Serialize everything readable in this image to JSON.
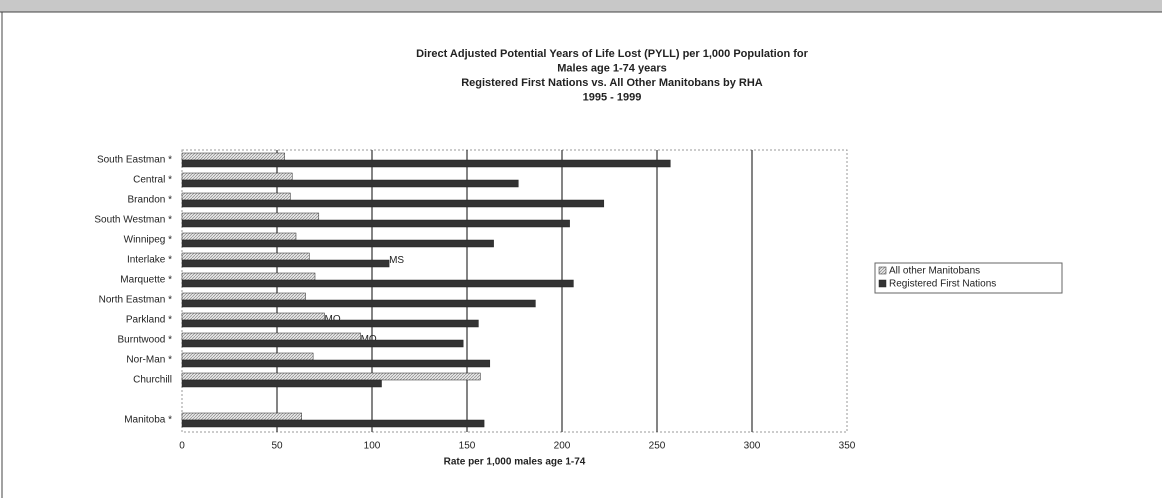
{
  "chart_data": {
    "type": "hbar",
    "title": [
      "Direct Adjusted Potential Years of Life Lost (PYLL) per 1,000 Population for",
      "Males age 1-74 years",
      "Registered First Nations vs. All Other Manitobans by RHA",
      "1995 - 1999"
    ],
    "xlabel": "Rate per 1,000 males age 1-74",
    "categories": [
      "South Eastman *",
      "Central *",
      "Brandon *",
      "South Westman *",
      "Winnipeg *",
      "Interlake *",
      "Marquette *",
      "North Eastman *",
      "Parkland *",
      "Burntwood *",
      "Nor-Man *",
      "Churchill",
      null,
      "Manitoba *"
    ],
    "series": [
      {
        "name": "All other Manitobans",
        "color": "#d8d8d8",
        "values": [
          54,
          58,
          57,
          72,
          60,
          67,
          70,
          65,
          75,
          94,
          69,
          157,
          null,
          63
        ],
        "labels": [
          null,
          null,
          null,
          null,
          null,
          null,
          null,
          null,
          "MO",
          "MO",
          null,
          null,
          null,
          null
        ]
      },
      {
        "name": "Registered First Nations",
        "color": "#333333",
        "values": [
          257,
          177,
          222,
          204,
          164,
          109,
          206,
          186,
          156,
          148,
          162,
          105,
          null,
          159
        ],
        "labels": [
          null,
          null,
          null,
          null,
          null,
          "MS",
          null,
          null,
          null,
          null,
          null,
          null,
          null,
          null
        ]
      }
    ],
    "xlim": [
      0,
      350
    ],
    "xticks": [
      0,
      50,
      100,
      150,
      200,
      250,
      300,
      350
    ],
    "grid": true,
    "legend": "right"
  }
}
